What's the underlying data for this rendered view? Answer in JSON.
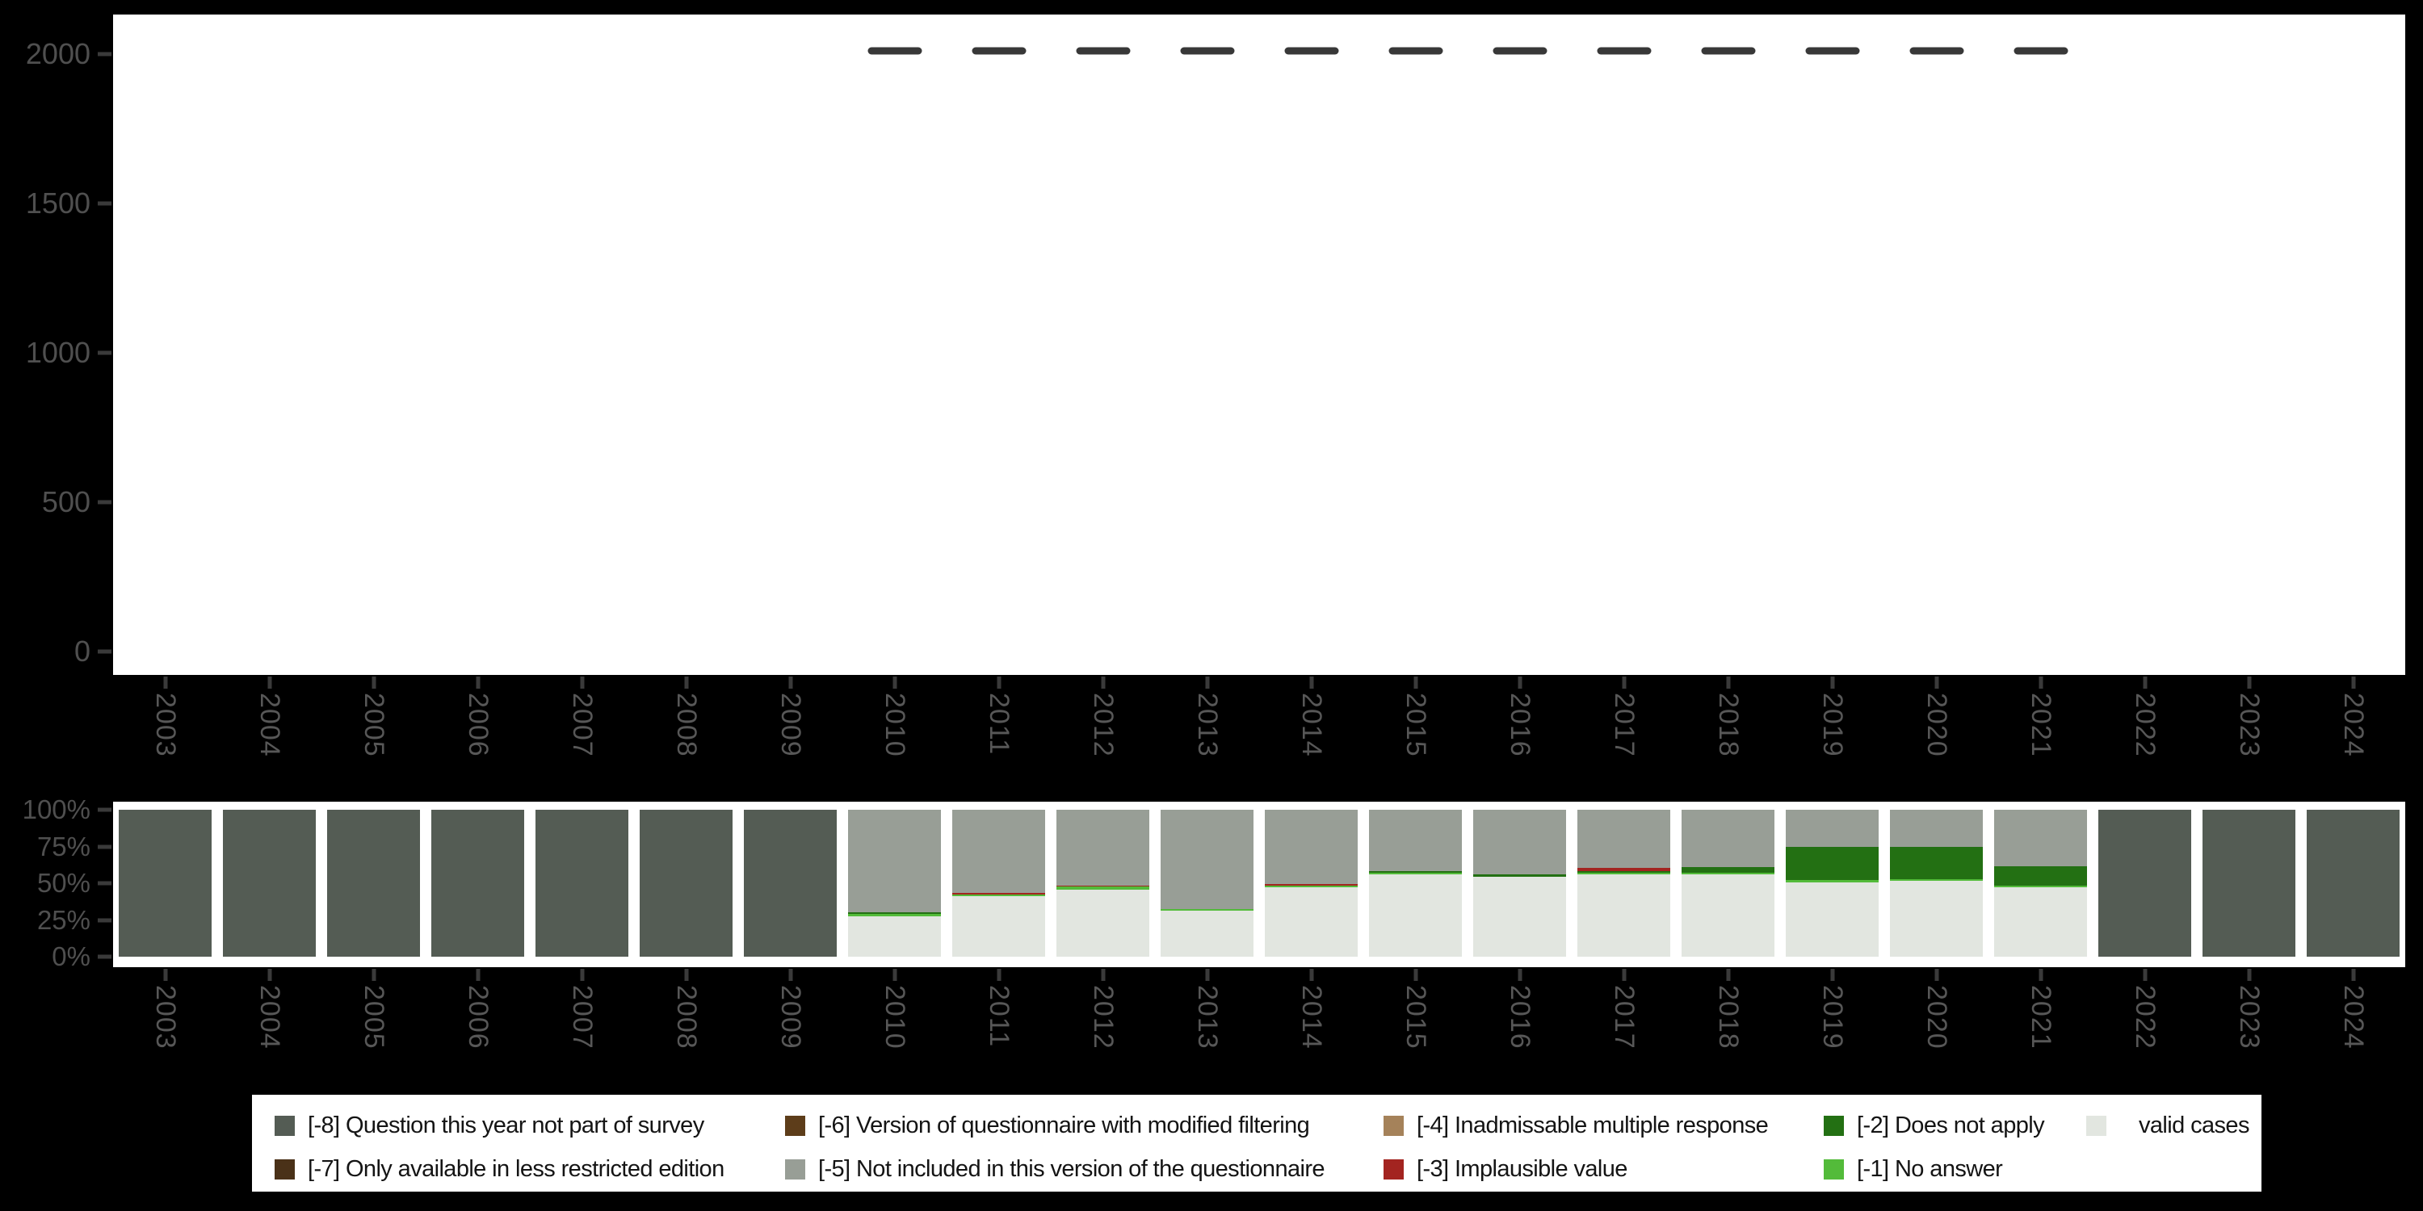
{
  "figure": {
    "background": "#000000",
    "panel_background": "#ffffff",
    "axis_text_color": "#4f4f4f",
    "tick_color": "#3a3a3a",
    "n_dash_color": "#383838"
  },
  "years": [
    "2003",
    "2004",
    "2005",
    "2006",
    "2007",
    "2008",
    "2009",
    "2010",
    "2011",
    "2012",
    "2013",
    "2014",
    "2015",
    "2016",
    "2017",
    "2018",
    "2019",
    "2020",
    "2021",
    "2022",
    "2023",
    "2024"
  ],
  "categories": [
    {
      "code": "-8",
      "label": "[-8] Question this year not part of survey",
      "color": "#545c54"
    },
    {
      "code": "-7",
      "label": "[-7] Only available in less restricted edition",
      "color": "#4a3118"
    },
    {
      "code": "-6",
      "label": "[-6] Version of questionnaire with modified filtering",
      "color": "#5d3d1a"
    },
    {
      "code": "-5",
      "label": "[-5] Not included in this version of the questionnaire",
      "color": "#989e96"
    },
    {
      "code": "-4",
      "label": "[-4] Inadmissable multiple response",
      "color": "#a5825a"
    },
    {
      "code": "-3",
      "label": "[-3] Implausible value",
      "color": "#a32420"
    },
    {
      "code": "-2",
      "label": "[-2] Does not apply",
      "color": "#237013"
    },
    {
      "code": "-1",
      "label": "[-1] No answer",
      "color": "#53bb3a"
    },
    {
      "code": "valid",
      "label": "valid cases",
      "color": "#e2e6e0"
    }
  ],
  "chart_data": [
    {
      "type": "scatter",
      "marker": "horizontal-dash",
      "title": "",
      "xlabel": "",
      "ylabel": "",
      "x": [
        "2003",
        "2004",
        "2005",
        "2006",
        "2007",
        "2008",
        "2009",
        "2010",
        "2011",
        "2012",
        "2013",
        "2014",
        "2015",
        "2016",
        "2017",
        "2018",
        "2019",
        "2020",
        "2021",
        "2022",
        "2023",
        "2024"
      ],
      "values": [
        null,
        null,
        null,
        null,
        null,
        null,
        null,
        2010,
        2010,
        2010,
        2010,
        2010,
        2010,
        2010,
        2010,
        2010,
        2010,
        2010,
        2010,
        null,
        null,
        null
      ],
      "ylim": [
        0,
        2080
      ],
      "yticks": [
        0,
        500,
        1000,
        1500,
        2000
      ],
      "ytick_labels": [
        "0",
        "500",
        "1000",
        "1500",
        "2000"
      ],
      "grid": false,
      "legend_position": "none"
    },
    {
      "type": "bar",
      "subtype": "stacked-percent",
      "title": "",
      "xlabel": "",
      "ylabel": "",
      "categories": [
        "2003",
        "2004",
        "2005",
        "2006",
        "2007",
        "2008",
        "2009",
        "2010",
        "2011",
        "2012",
        "2013",
        "2014",
        "2015",
        "2016",
        "2017",
        "2018",
        "2019",
        "2020",
        "2021",
        "2022",
        "2023",
        "2024"
      ],
      "ylim": [
        0,
        100
      ],
      "yticks": [
        0,
        25,
        50,
        75,
        100
      ],
      "ytick_labels": [
        "0%",
        "25%",
        "50%",
        "75%",
        "100%"
      ],
      "grid": false,
      "legend_position": "bottom",
      "series": [
        {
          "name": "[-8] Question this year not part of survey",
          "code": "-8",
          "values": [
            100,
            100,
            100,
            100,
            100,
            100,
            100,
            0,
            0,
            0,
            0,
            0,
            0,
            0,
            0,
            0,
            0,
            0,
            0,
            100,
            100,
            100
          ]
        },
        {
          "name": "[-7] Only available in less restricted edition",
          "code": "-7",
          "values": [
            0,
            0,
            0,
            0,
            0,
            0,
            0,
            0,
            0,
            0,
            0,
            0,
            0,
            0,
            0,
            0,
            0,
            0,
            0,
            0,
            0,
            0
          ]
        },
        {
          "name": "[-6] Version of questionnaire with modified filtering",
          "code": "-6",
          "values": [
            0,
            0,
            0,
            0,
            0,
            0,
            0,
            0,
            0,
            0,
            0,
            0,
            0,
            0,
            0,
            0,
            0,
            0,
            0,
            0,
            0,
            0
          ]
        },
        {
          "name": "[-5] Not included in this version of the questionnaire",
          "code": "-5",
          "values": [
            0,
            0,
            0,
            0,
            0,
            0,
            0,
            70.0,
            56.7,
            51.4,
            67.5,
            50.6,
            42.0,
            44.2,
            39.6,
            39.0,
            25.4,
            25.4,
            38.4,
            0,
            0,
            0
          ]
        },
        {
          "name": "[-4] Inadmissable multiple response",
          "code": "-4",
          "values": [
            0,
            0,
            0,
            0,
            0,
            0,
            0,
            0,
            0,
            0,
            0,
            0,
            0,
            0,
            0,
            0,
            0,
            0,
            0,
            0,
            0,
            0
          ]
        },
        {
          "name": "[-3] Implausible value",
          "code": "-3",
          "values": [
            0,
            0,
            0,
            0,
            0,
            0,
            0,
            0,
            1.2,
            1.0,
            0,
            1.0,
            0,
            0,
            2.0,
            0,
            0,
            0,
            0,
            0,
            0,
            0
          ]
        },
        {
          "name": "[-2] Does not apply",
          "code": "-2",
          "values": [
            0,
            0,
            0,
            0,
            0,
            0,
            0,
            0.8,
            0,
            0,
            0,
            0,
            1.1,
            1.2,
            1.5,
            3.6,
            22.4,
            21.9,
            13.1,
            0,
            0,
            0
          ]
        },
        {
          "name": "[-1] No answer",
          "code": "-1",
          "values": [
            0,
            0,
            0,
            0,
            0,
            0,
            0,
            1.5,
            1.1,
            2.0,
            1.2,
            1.0,
            0.9,
            0,
            1.0,
            1.4,
            1.7,
            1.0,
            1.1,
            0,
            0,
            0
          ]
        },
        {
          "name": "valid cases",
          "code": "valid",
          "values": [
            0,
            0,
            0,
            0,
            0,
            0,
            0,
            27.7,
            41.0,
            45.6,
            31.3,
            47.4,
            56.0,
            54.6,
            55.9,
            56.0,
            50.5,
            51.7,
            47.4,
            0,
            0,
            0
          ]
        }
      ]
    }
  ],
  "legend": {
    "order": [
      "-8",
      "-7",
      "-6",
      "-5",
      "-4",
      "-3",
      "-2",
      "-1",
      "valid"
    ]
  }
}
